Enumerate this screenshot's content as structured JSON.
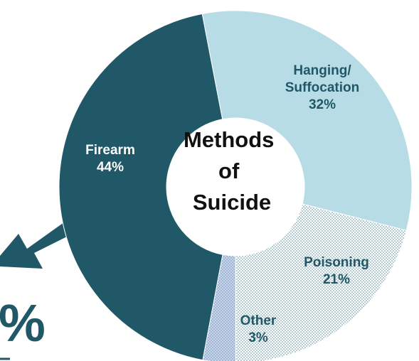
{
  "chart_data": {
    "type": "pie",
    "title": "Methods of Suicide",
    "title_lines": [
      "Methods",
      "of",
      "Suicide"
    ],
    "donut": true,
    "unit": "%",
    "slices": [
      {
        "label_lines": [
          "Hanging/",
          "Suffocation"
        ],
        "value": 32,
        "value_label": "32%",
        "color": "#b7dce6",
        "pattern": "solid"
      },
      {
        "label_lines": [
          "Poisoning"
        ],
        "value": 21,
        "value_label": "21%",
        "color": "#f2f7f9",
        "pattern": "dots"
      },
      {
        "label_lines": [
          "Other"
        ],
        "value": 3,
        "value_label": "3%",
        "color": "#8fa9cc",
        "pattern": "dots"
      },
      {
        "label_lines": [
          "Firearm"
        ],
        "value": 44,
        "value_label": "44%",
        "color": "#215868",
        "pattern": "solid"
      }
    ]
  },
  "page": {
    "arrow_color": "#215868",
    "partial_text": "%"
  }
}
